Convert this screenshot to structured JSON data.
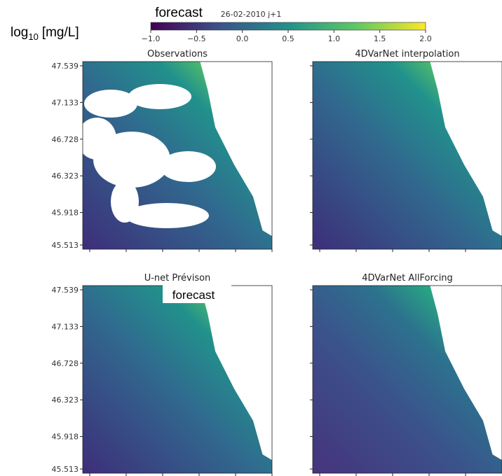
{
  "header": {
    "title": "forecast",
    "date": "26-02-2010 j+1",
    "unit_base": "log",
    "unit_sub": "10",
    "unit_rest": "[mg/L]"
  },
  "colorbar": {
    "ticks": [
      "−1.0",
      "−0.5",
      "0.0",
      "0.5",
      "1.0",
      "1.5",
      "2.0"
    ]
  },
  "yticks": [
    "47.539",
    "47.133",
    "46.728",
    "46.323",
    "45.918",
    "45.513"
  ],
  "panels": [
    {
      "title": "Observations"
    },
    {
      "title": "4DVarNet interpolation"
    },
    {
      "title": "U-net Prévison"
    },
    {
      "title": "4DVarNet AllForcing"
    }
  ],
  "overlay": {
    "label": "forecast"
  }
}
